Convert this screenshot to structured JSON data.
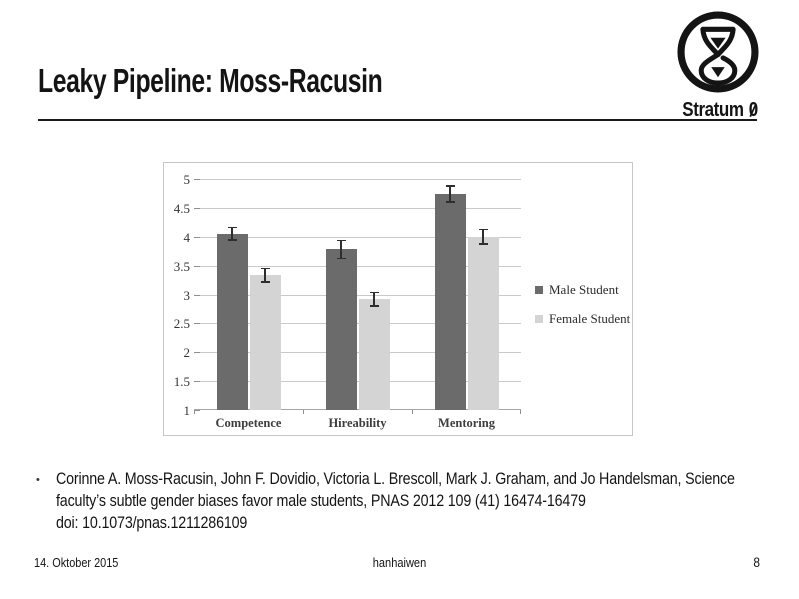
{
  "slide": {
    "title": "Leaky Pipeline: Moss-Racusin",
    "logo": {
      "name": "Stratum",
      "zero": "0"
    },
    "citation": {
      "bullet": "•",
      "lines": [
        "Corinne A. Moss-Racusin, John F. Dovidio, Victoria L. Brescoll, Mark J. Graham, and Jo Handelsman, Science",
        "faculty’s subtle gender biases favor male students, PNAS 2012 109 (41) 16474-16479",
        "doi: 10.1073/pnas.1211286109"
      ]
    },
    "footer": {
      "date": "14. Oktober 2015",
      "author": "hanhaiwen",
      "page": "8"
    }
  },
  "chart_data": {
    "type": "bar",
    "title": "",
    "xlabel": "",
    "ylabel": "",
    "categories": [
      "Competence",
      "Hireability",
      "Mentoring"
    ],
    "series": [
      {
        "name": "Male Student",
        "color": "#6b6b6b",
        "values": [
          4.05,
          3.78,
          4.74
        ],
        "errors": [
          0.12,
          0.17,
          0.15
        ]
      },
      {
        "name": "Female Student",
        "color": "#d4d4d4",
        "values": [
          3.33,
          2.92,
          4.0
        ],
        "errors": [
          0.13,
          0.13,
          0.14
        ]
      }
    ],
    "ylim": [
      1,
      5
    ],
    "ytick_step": 0.5,
    "grid": true,
    "legend_position": "right"
  }
}
